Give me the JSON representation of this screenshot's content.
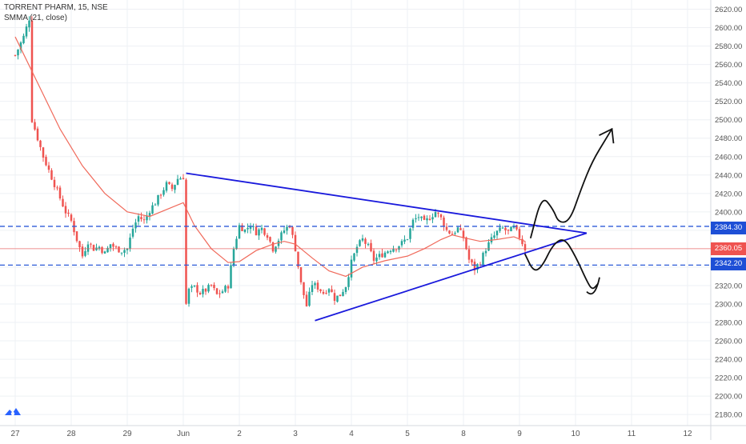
{
  "header": {
    "symbol_line": "TORRENT PHARM, 15, NSE",
    "indicator_line": "SMMA (21, close)"
  },
  "colors": {
    "up": "#26a69a",
    "down": "#ef5350",
    "smma": "#f06a5b",
    "pattern": "#1a1adc",
    "support_resistance": "#2d5bd8",
    "price_line": "#ef5350",
    "last_price_tag": "#ef5350",
    "level_tag": "#1e4fd6",
    "axis_text": "#555555",
    "grid": "#eef0f4"
  },
  "chart_data": {
    "type": "candlestick",
    "title": "TORRENT PHARM, 15, NSE",
    "indicator": "SMMA (21, close)",
    "x_ticks": [
      "27",
      "28",
      "29",
      "Jun",
      "2",
      "3",
      "4",
      "5",
      "8",
      "9",
      "10",
      "11",
      "12"
    ],
    "y_ticks": [
      2180,
      2200,
      2220,
      2240,
      2260,
      2280,
      2300,
      2320,
      2340,
      2360,
      2380,
      2400,
      2420,
      2440,
      2460,
      2480,
      2500,
      2520,
      2540,
      2560,
      2580,
      2600,
      2620
    ],
    "y_range": [
      2168,
      2630
    ],
    "last_price": "2360.05",
    "levels": [
      {
        "label": "2384.30",
        "value": 2384.3
      },
      {
        "label": "2342.20",
        "value": 2342.2
      }
    ],
    "close_path": [
      [
        0,
        2570
      ],
      [
        1.5,
        2590
      ],
      [
        2.5,
        2610
      ],
      [
        3,
        2500
      ],
      [
        4,
        2480
      ],
      [
        5,
        2460
      ],
      [
        6,
        2445
      ],
      [
        7,
        2430
      ],
      [
        8,
        2415
      ],
      [
        9,
        2400
      ],
      [
        10,
        2390
      ],
      [
        11,
        2370
      ],
      [
        12,
        2352
      ],
      [
        13,
        2368
      ],
      [
        14,
        2360
      ],
      [
        15,
        2362
      ],
      [
        16,
        2355
      ],
      [
        17,
        2365
      ],
      [
        18,
        2360
      ],
      [
        19,
        2358
      ],
      [
        20,
        2360
      ],
      [
        21,
        2382
      ],
      [
        22,
        2395
      ],
      [
        23,
        2390
      ],
      [
        24,
        2402
      ],
      [
        25,
        2410
      ],
      [
        26,
        2420
      ],
      [
        27,
        2430
      ],
      [
        28,
        2425
      ],
      [
        29,
        2436
      ],
      [
        30,
        2438
      ],
      [
        30.5,
        2300
      ],
      [
        31,
        2315
      ],
      [
        32,
        2318
      ],
      [
        33,
        2312
      ],
      [
        34,
        2315
      ],
      [
        35,
        2320
      ],
      [
        36,
        2310
      ],
      [
        37,
        2314
      ],
      [
        38,
        2320
      ],
      [
        39,
        2360
      ],
      [
        40,
        2385
      ],
      [
        41,
        2380
      ],
      [
        42,
        2386
      ],
      [
        43,
        2378
      ],
      [
        44,
        2382
      ],
      [
        45,
        2375
      ],
      [
        46,
        2360
      ],
      [
        47,
        2370
      ],
      [
        48,
        2380
      ],
      [
        49,
        2386
      ],
      [
        50,
        2360
      ],
      [
        51,
        2322
      ],
      [
        52,
        2298
      ],
      [
        53,
        2322
      ],
      [
        54,
        2318
      ],
      [
        55,
        2312
      ],
      [
        56,
        2318
      ],
      [
        57,
        2306
      ],
      [
        58,
        2310
      ],
      [
        59,
        2320
      ],
      [
        60,
        2345
      ],
      [
        61,
        2362
      ],
      [
        62,
        2370
      ],
      [
        63,
        2362
      ],
      [
        64,
        2348
      ],
      [
        65,
        2352
      ],
      [
        66,
        2356
      ],
      [
        67,
        2360
      ],
      [
        68,
        2362
      ],
      [
        69,
        2366
      ],
      [
        70,
        2372
      ],
      [
        71,
        2390
      ],
      [
        72,
        2395
      ],
      [
        73,
        2388
      ],
      [
        74,
        2394
      ],
      [
        75,
        2400
      ],
      [
        76,
        2393
      ],
      [
        77,
        2380
      ],
      [
        78,
        2376
      ],
      [
        79,
        2382
      ],
      [
        80,
        2372
      ],
      [
        81,
        2348
      ],
      [
        82,
        2338
      ],
      [
        83,
        2346
      ],
      [
        84,
        2360
      ],
      [
        85,
        2370
      ],
      [
        86,
        2378
      ],
      [
        87,
        2382
      ],
      [
        88,
        2378
      ],
      [
        89,
        2383
      ],
      [
        90,
        2373
      ],
      [
        91,
        2360
      ]
    ],
    "smma_path": [
      [
        0,
        2590
      ],
      [
        4,
        2540
      ],
      [
        8,
        2490
      ],
      [
        12,
        2450
      ],
      [
        16,
        2420
      ],
      [
        20,
        2400
      ],
      [
        24,
        2395
      ],
      [
        28,
        2405
      ],
      [
        30,
        2410
      ],
      [
        32,
        2385
      ],
      [
        35,
        2360
      ],
      [
        38,
        2345
      ],
      [
        40,
        2346
      ],
      [
        43,
        2358
      ],
      [
        46,
        2365
      ],
      [
        48,
        2368
      ],
      [
        50,
        2365
      ],
      [
        53,
        2350
      ],
      [
        56,
        2336
      ],
      [
        59,
        2330
      ],
      [
        62,
        2340
      ],
      [
        66,
        2347
      ],
      [
        70,
        2352
      ],
      [
        73,
        2360
      ],
      [
        76,
        2370
      ],
      [
        78,
        2375
      ],
      [
        80,
        2372
      ],
      [
        83,
        2368
      ],
      [
        86,
        2370
      ],
      [
        89,
        2373
      ],
      [
        91,
        2368
      ]
    ],
    "pattern_lines": [
      {
        "from": [
          30.5,
          2442
        ],
        "to": [
          102,
          2377
        ]
      },
      {
        "from": [
          53.5,
          2282
        ],
        "to": [
          102,
          2377
        ]
      }
    ],
    "projection_curves": [
      {
        "kind": "bullish",
        "points": [
          [
            92,
            2372
          ],
          [
            94,
            2418
          ],
          [
            96,
            2403
          ],
          [
            97,
            2388
          ],
          [
            99,
            2390
          ],
          [
            101,
            2425
          ],
          [
            103,
            2455
          ],
          [
            105.5,
            2480
          ],
          [
            106.5,
            2490
          ]
        ]
      },
      {
        "kind": "bearish",
        "points": [
          [
            91,
            2354
          ],
          [
            92.5,
            2335
          ],
          [
            94,
            2340
          ],
          [
            96,
            2365
          ],
          [
            98,
            2372
          ],
          [
            100,
            2352
          ],
          [
            102,
            2325
          ],
          [
            103,
            2315
          ],
          [
            104,
            2322
          ]
        ]
      }
    ]
  }
}
